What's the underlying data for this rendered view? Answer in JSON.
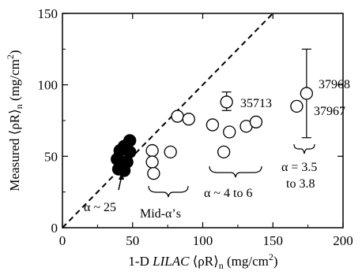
{
  "chart_data": {
    "type": "scatter",
    "xlabel": "1-D LILAC ⟨ρR⟩n (mg/cm²)",
    "ylabel": "Measured ⟨ρR⟩n (mg/cm²)",
    "xlabel_parts": {
      "prefix": "1-D ",
      "italic": "LILAC",
      "suffix": " ⟨ρR⟩",
      "sub": "n",
      "units": " (mg/cm",
      "sup": "2",
      "close": ")"
    },
    "ylabel_parts": {
      "prefix": "Measured ⟨ρR⟩",
      "sub": "n",
      "units": " (mg/cm",
      "sup": "2",
      "close": ")"
    },
    "xlim": [
      0,
      200
    ],
    "ylim": [
      0,
      150
    ],
    "xticks": [
      0,
      50,
      100,
      150,
      200
    ],
    "yticks": [
      0,
      50,
      100,
      150
    ],
    "xtick_labels": [
      "0",
      "50",
      "100",
      "150",
      "200"
    ],
    "ytick_labels": [
      "0",
      "50",
      "100",
      "150"
    ],
    "grid": false,
    "reference_line": {
      "style": "dashed",
      "points": [
        [
          0,
          0
        ],
        [
          150,
          150
        ]
      ]
    },
    "series": [
      {
        "marker": "filled-circle",
        "points": [
          [
            40,
            41
          ],
          [
            44,
            40
          ],
          [
            39,
            48
          ],
          [
            46,
            46
          ],
          [
            41,
            54
          ],
          [
            48,
            53
          ],
          [
            44,
            57
          ],
          [
            48,
            61
          ],
          [
            42,
            46
          ]
        ]
      },
      {
        "marker": "open-circle",
        "points": [
          [
            64,
            54
          ],
          [
            64,
            46
          ],
          [
            65,
            38
          ],
          [
            77,
            53
          ],
          [
            82,
            78
          ],
          [
            90,
            76
          ]
        ]
      },
      {
        "marker": "open-circle",
        "points": [
          [
            107,
            72
          ],
          [
            115,
            53
          ],
          [
            119,
            67
          ],
          [
            117,
            88
          ],
          [
            131,
            71
          ],
          [
            138,
            74
          ]
        ]
      },
      {
        "marker": "open-circle",
        "points": [
          [
            167,
            85
          ],
          [
            174,
            94
          ]
        ]
      }
    ],
    "error_bars": [
      {
        "x": 117,
        "y": 88,
        "low": 82,
        "high": 95
      },
      {
        "x": 174,
        "y": 94,
        "low": 63,
        "high": 125
      }
    ],
    "annotations": [
      {
        "id": "label-35713",
        "text": "35713"
      },
      {
        "id": "label-37968",
        "text": "37968"
      },
      {
        "id": "label-37967",
        "text": "37967"
      },
      {
        "id": "label-alpha25",
        "text": "α ~ 25"
      },
      {
        "id": "label-mid",
        "text": "Mid-α’s"
      },
      {
        "id": "label-4to6",
        "text": "α ~ 4 to 6"
      },
      {
        "id": "label-35a",
        "text": "α = 3.5"
      },
      {
        "id": "label-35b",
        "text": "to 3.8"
      }
    ]
  }
}
